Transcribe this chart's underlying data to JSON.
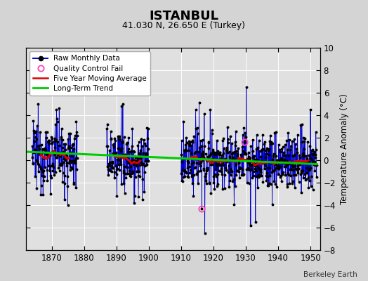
{
  "title": "ISTANBUL",
  "subtitle": "41.030 N, 26.650 E (Turkey)",
  "ylabel": "Temperature Anomaly (°C)",
  "credit": "Berkeley Earth",
  "xlim": [
    1862,
    1953
  ],
  "ylim": [
    -8,
    10
  ],
  "yticks": [
    -8,
    -6,
    -4,
    -2,
    0,
    2,
    4,
    6,
    8,
    10
  ],
  "xticks": [
    1870,
    1880,
    1890,
    1900,
    1910,
    1920,
    1930,
    1940,
    1950
  ],
  "bg_color": "#d4d4d4",
  "plot_bg_color": "#e0e0e0",
  "grid_color": "#ffffff",
  "long_term_trend": {
    "x": [
      1862,
      1952
    ],
    "y": [
      0.75,
      -0.35
    ],
    "color": "#00cc00",
    "linewidth": 2.2
  },
  "seg1_start": 1864.0,
  "seg1_end": 1878.0,
  "seg2_start": 1887.0,
  "seg2_end": 1900.0,
  "seg3_start": 1910.0,
  "seg3_end": 1952.0,
  "raw_data_color": "#0000cc",
  "raw_data_marker_color": "#000000",
  "moving_avg_color": "#dd0000",
  "qc_color": "#ff44bb",
  "raw_noise_std": 1.4,
  "title_fontsize": 13,
  "subtitle_fontsize": 9,
  "tick_fontsize": 8.5,
  "ylabel_fontsize": 8.5,
  "legend_fontsize": 7.5,
  "credit_fontsize": 7.5
}
